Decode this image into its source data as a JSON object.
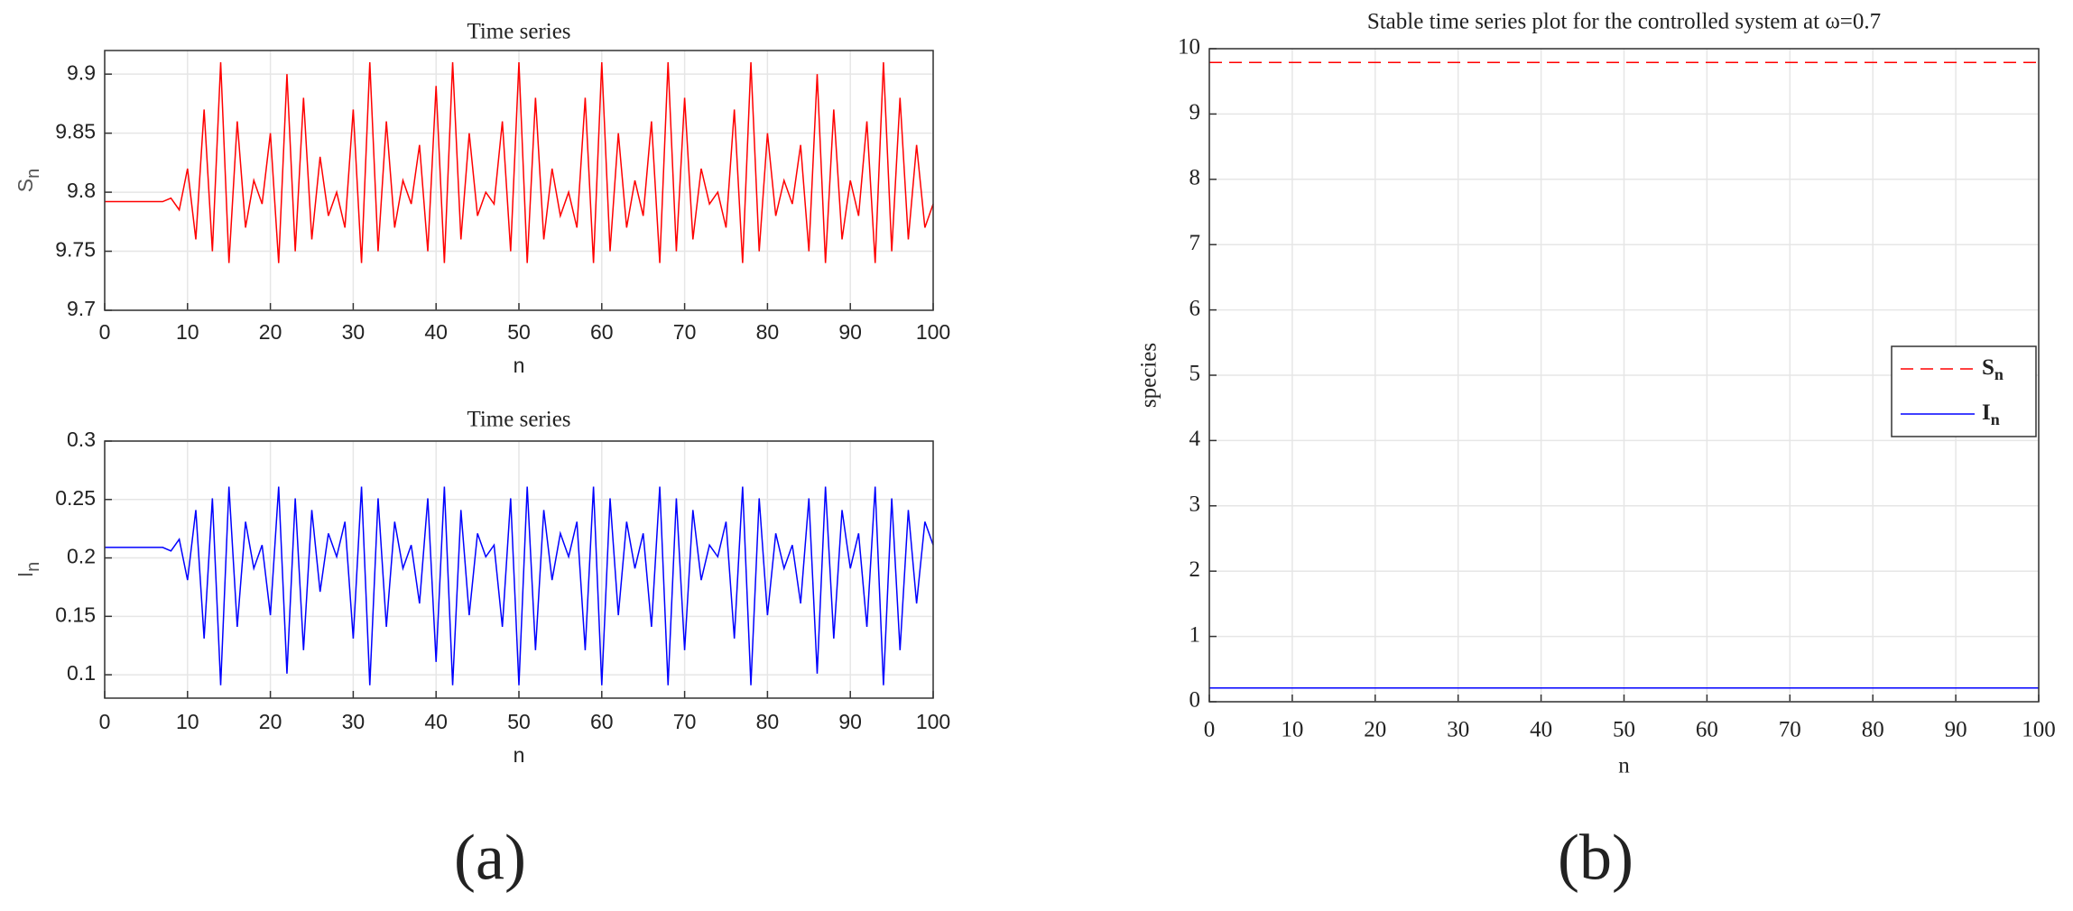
{
  "chart_data": [
    {
      "type": "line",
      "title": "Time series",
      "ylabel": "S",
      "ylabel_sub": "n",
      "xlabel": "n",
      "color": "#ff0000",
      "grid": true,
      "xlim": [
        0,
        100
      ],
      "xticks": [
        0,
        10,
        20,
        30,
        40,
        50,
        60,
        70,
        80,
        90,
        100
      ],
      "ylim": [
        9.7,
        9.92
      ],
      "yticks": [
        9.7,
        9.75,
        9.8,
        9.85,
        9.9
      ],
      "x": [
        0,
        1,
        2,
        3,
        4,
        5,
        6,
        7,
        8,
        9,
        10,
        11,
        12,
        13,
        14,
        15,
        16,
        17,
        18,
        19,
        20,
        21,
        22,
        23,
        24,
        25,
        26,
        27,
        28,
        29,
        30,
        31,
        32,
        33,
        34,
        35,
        36,
        37,
        38,
        39,
        40,
        41,
        42,
        43,
        44,
        45,
        46,
        47,
        48,
        49,
        50,
        51,
        52,
        53,
        54,
        55,
        56,
        57,
        58,
        59,
        60,
        61,
        62,
        63,
        64,
        65,
        66,
        67,
        68,
        69,
        70,
        71,
        72,
        73,
        74,
        75,
        76,
        77,
        78,
        79,
        80,
        81,
        82,
        83,
        84,
        85,
        86,
        87,
        88,
        89,
        90,
        91,
        92,
        93,
        94,
        95,
        96,
        97,
        98,
        99,
        100
      ],
      "values": [
        9.792,
        9.792,
        9.792,
        9.792,
        9.792,
        9.792,
        9.792,
        9.792,
        9.795,
        9.785,
        9.82,
        9.76,
        9.87,
        9.75,
        9.91,
        9.74,
        9.86,
        9.77,
        9.81,
        9.79,
        9.85,
        9.74,
        9.9,
        9.75,
        9.88,
        9.76,
        9.83,
        9.78,
        9.8,
        9.77,
        9.87,
        9.74,
        9.91,
        9.75,
        9.86,
        9.77,
        9.81,
        9.79,
        9.84,
        9.75,
        9.89,
        9.74,
        9.91,
        9.76,
        9.85,
        9.78,
        9.8,
        9.79,
        9.86,
        9.75,
        9.91,
        9.74,
        9.88,
        9.76,
        9.82,
        9.78,
        9.8,
        9.77,
        9.88,
        9.74,
        9.91,
        9.75,
        9.85,
        9.77,
        9.81,
        9.78,
        9.86,
        9.74,
        9.91,
        9.75,
        9.88,
        9.76,
        9.82,
        9.79,
        9.8,
        9.77,
        9.87,
        9.74,
        9.91,
        9.75,
        9.85,
        9.78,
        9.81,
        9.79,
        9.84,
        9.75,
        9.9,
        9.74,
        9.87,
        9.76,
        9.81,
        9.78,
        9.86,
        9.74,
        9.91,
        9.75,
        9.88,
        9.76,
        9.84,
        9.77,
        9.79
      ]
    },
    {
      "type": "line",
      "title": "Time series",
      "ylabel": "I",
      "ylabel_sub": "n",
      "xlabel": "n",
      "color": "#0000ff",
      "grid": true,
      "xlim": [
        0,
        100
      ],
      "xticks": [
        0,
        10,
        20,
        30,
        40,
        50,
        60,
        70,
        80,
        90,
        100
      ],
      "ylim": [
        0.08,
        0.3
      ],
      "yticks": [
        0.1,
        0.15,
        0.2,
        0.25,
        0.3
      ],
      "x": [
        0,
        1,
        2,
        3,
        4,
        5,
        6,
        7,
        8,
        9,
        10,
        11,
        12,
        13,
        14,
        15,
        16,
        17,
        18,
        19,
        20,
        21,
        22,
        23,
        24,
        25,
        26,
        27,
        28,
        29,
        30,
        31,
        32,
        33,
        34,
        35,
        36,
        37,
        38,
        39,
        40,
        41,
        42,
        43,
        44,
        45,
        46,
        47,
        48,
        49,
        50,
        51,
        52,
        53,
        54,
        55,
        56,
        57,
        58,
        59,
        60,
        61,
        62,
        63,
        64,
        65,
        66,
        67,
        68,
        69,
        70,
        71,
        72,
        73,
        74,
        75,
        76,
        77,
        78,
        79,
        80,
        81,
        82,
        83,
        84,
        85,
        86,
        87,
        88,
        89,
        90,
        91,
        92,
        93,
        94,
        95,
        96,
        97,
        98,
        99,
        100
      ],
      "values": [
        0.209,
        0.209,
        0.209,
        0.209,
        0.209,
        0.209,
        0.209,
        0.209,
        0.206,
        0.216,
        0.181,
        0.241,
        0.131,
        0.251,
        0.091,
        0.261,
        0.141,
        0.231,
        0.191,
        0.211,
        0.151,
        0.261,
        0.101,
        0.251,
        0.121,
        0.241,
        0.171,
        0.221,
        0.201,
        0.231,
        0.131,
        0.261,
        0.091,
        0.251,
        0.141,
        0.231,
        0.191,
        0.211,
        0.161,
        0.251,
        0.111,
        0.261,
        0.091,
        0.241,
        0.151,
        0.221,
        0.201,
        0.211,
        0.141,
        0.251,
        0.091,
        0.261,
        0.121,
        0.241,
        0.181,
        0.221,
        0.201,
        0.231,
        0.121,
        0.261,
        0.091,
        0.251,
        0.151,
        0.231,
        0.191,
        0.221,
        0.141,
        0.261,
        0.091,
        0.251,
        0.121,
        0.241,
        0.181,
        0.211,
        0.201,
        0.231,
        0.131,
        0.261,
        0.091,
        0.251,
        0.151,
        0.221,
        0.191,
        0.211,
        0.161,
        0.251,
        0.101,
        0.261,
        0.131,
        0.241,
        0.191,
        0.221,
        0.141,
        0.261,
        0.091,
        0.251,
        0.121,
        0.241,
        0.161,
        0.231,
        0.211
      ]
    },
    {
      "type": "line",
      "title": "Stable time series plot for the controlled system at ω=0.7",
      "ylabel": "species",
      "xlabel": "n",
      "grid": true,
      "xlim": [
        0,
        100
      ],
      "xticks": [
        0,
        10,
        20,
        30,
        40,
        50,
        60,
        70,
        80,
        90,
        100
      ],
      "ylim": [
        0,
        10
      ],
      "yticks": [
        0,
        1,
        2,
        3,
        4,
        5,
        6,
        7,
        8,
        9,
        10
      ],
      "x": [
        0,
        100
      ],
      "legend": "right",
      "series": [
        {
          "name": "S",
          "name_sub": "n",
          "color": "#ff0000",
          "linestyle": "dashed",
          "values": [
            9.79,
            9.79
          ]
        },
        {
          "name": "I",
          "name_sub": "n",
          "color": "#0000ff",
          "linestyle": "solid",
          "values": [
            0.21,
            0.21
          ]
        }
      ]
    }
  ],
  "panels": [
    "(a)",
    "(b)"
  ]
}
